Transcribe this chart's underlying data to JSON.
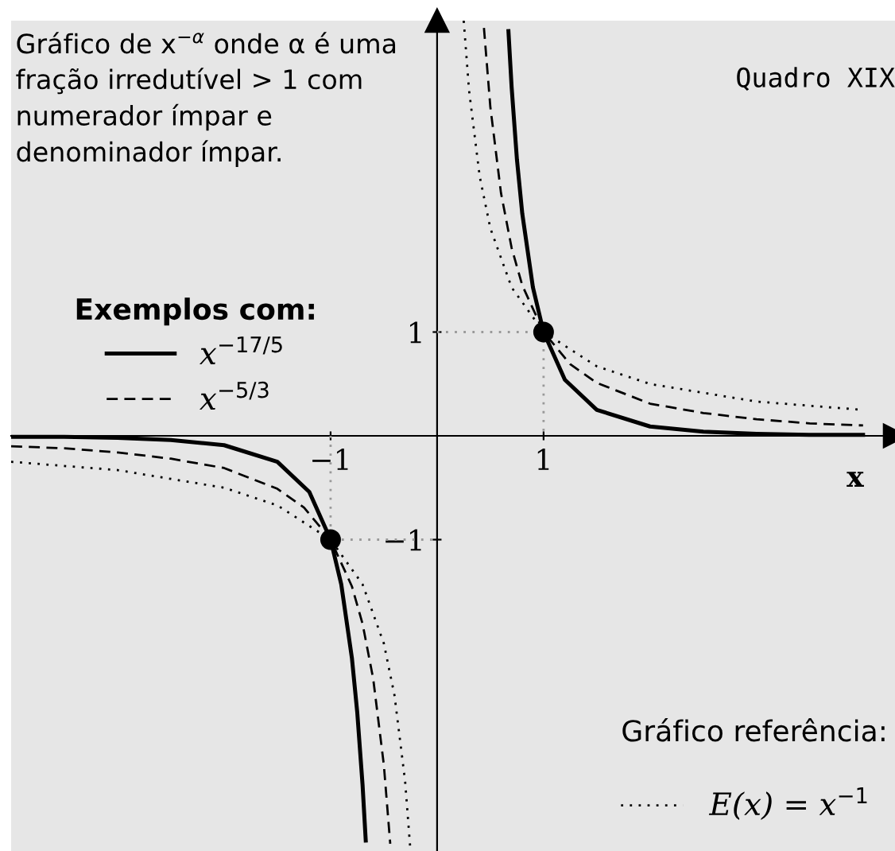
{
  "chart_data": {
    "type": "line",
    "title": "Quadro XIX",
    "xlabel": "x",
    "legend_title": "Exemplos com:",
    "annotations": [
      "Gráfico de x$^{−α}$ onde α é uma fração irredutível > 1 com numerador ímpar e denominador ímpar.",
      "Gráfico referência:",
      "E(x) = x$^{−1}$"
    ],
    "xlim": [
      -4,
      4.3
    ],
    "ylim": [
      -4,
      4
    ],
    "xticks": [
      -1,
      1
    ],
    "yticks": [
      -1,
      1
    ],
    "grid": false,
    "legend": "top left",
    "series": [
      {
        "name": "x$^{−17/5}$",
        "color": "#000000",
        "line_style": "solid",
        "x": [
          -4,
          -3.5,
          -3,
          -2.5,
          -2,
          -1.5,
          -1.2,
          -1,
          -0.9,
          -0.8,
          -0.75,
          -0.7,
          -0.67,
          0,
          0.67,
          0.7,
          0.75,
          0.8,
          0.9,
          1,
          1.2,
          1.5,
          2,
          2.5,
          3,
          3.5,
          4
        ],
        "values": [
          -0.01,
          -0.01,
          -0.02,
          -0.04,
          -0.09,
          -0.25,
          -0.54,
          -1,
          -1.43,
          -2.14,
          -2.66,
          -3.36,
          -3.9,
          null,
          3.9,
          3.36,
          2.66,
          2.14,
          1.43,
          1,
          0.54,
          0.25,
          0.09,
          0.04,
          0.02,
          0.01,
          0.01
        ]
      },
      {
        "name": "x$^{−5/3}$",
        "color": "#000000",
        "line_style": "dashed",
        "x": [
          -4,
          -3.5,
          -3,
          -2.5,
          -2,
          -1.5,
          -1.25,
          -1,
          -0.8,
          -0.7,
          -0.6,
          -0.5,
          -0.44,
          0,
          0.44,
          0.5,
          0.6,
          0.7,
          0.8,
          1,
          1.25,
          1.5,
          2,
          2.5,
          3,
          3.5,
          4
        ],
        "values": [
          -0.1,
          -0.12,
          -0.16,
          -0.22,
          -0.31,
          -0.51,
          -0.69,
          -1,
          -1.45,
          -1.81,
          -2.34,
          -3.17,
          -3.93,
          null,
          3.93,
          3.17,
          2.34,
          1.81,
          1.45,
          1,
          0.69,
          0.51,
          0.31,
          0.22,
          0.16,
          0.12,
          0.1
        ]
      },
      {
        "color": "#000000",
        "line_style": "dotted",
        "x": [
          -4,
          -3,
          -2,
          -1.5,
          -1,
          -0.7,
          -0.5,
          -0.4,
          -0.3,
          -0.25,
          0,
          0.25,
          0.3,
          0.4,
          0.5,
          0.7,
          1,
          1.5,
          2,
          3,
          4
        ],
        "values": [
          -0.25,
          -0.33,
          -0.5,
          -0.67,
          -1,
          -1.43,
          -2,
          -2.5,
          -3.33,
          -4,
          null,
          4,
          3.33,
          2.5,
          2,
          1.43,
          1,
          0.67,
          0.5,
          0.33,
          0.25
        ]
      },
      {
        "type": "line",
        "color": "#999999",
        "line_style": "dotted",
        "x": [
          0,
          1,
          1,
          0,
          -1,
          -1,
          0
        ],
        "values": [
          1,
          1,
          0,
          null,
          0,
          -1,
          -1
        ]
      },
      {
        "type": "scatter",
        "color": "#000000",
        "marker": "circle",
        "x": [
          1,
          -1
        ],
        "values": [
          1,
          -1
        ]
      }
    ]
  }
}
